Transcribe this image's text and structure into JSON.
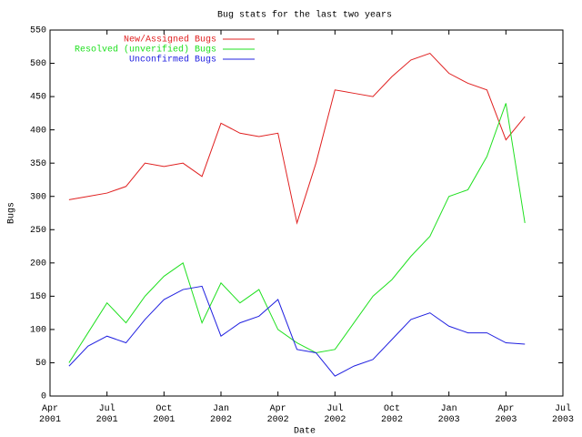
{
  "chart_data": {
    "type": "line",
    "title": "Bug stats for the last two years",
    "xlabel": "Date",
    "ylabel": "Bugs",
    "x": [
      "2001-05",
      "2001-06",
      "2001-07",
      "2001-08",
      "2001-09",
      "2001-10",
      "2001-11",
      "2001-12",
      "2002-01",
      "2002-02",
      "2002-03",
      "2002-04",
      "2002-05",
      "2002-06",
      "2002-07",
      "2002-08",
      "2002-09",
      "2002-10",
      "2002-11",
      "2002-12",
      "2003-01",
      "2003-02",
      "2003-03",
      "2003-04",
      "2003-05"
    ],
    "series": [
      {
        "name": "New/Assigned Bugs",
        "color": "#e02020",
        "values": [
          295,
          300,
          305,
          315,
          350,
          345,
          350,
          330,
          410,
          395,
          390,
          395,
          260,
          350,
          460,
          455,
          450,
          480,
          505,
          515,
          485,
          470,
          460,
          385,
          420
        ]
      },
      {
        "name": "Resolved (unverified) Bugs",
        "color": "#20e020",
        "values": [
          50,
          95,
          140,
          110,
          150,
          180,
          200,
          110,
          170,
          140,
          160,
          100,
          80,
          65,
          70,
          110,
          150,
          175,
          210,
          240,
          300,
          310,
          360,
          440,
          260
        ]
      },
      {
        "name": "Unconfirmed Bugs",
        "color": "#2020e0",
        "values": [
          45,
          75,
          90,
          80,
          115,
          145,
          160,
          165,
          90,
          110,
          120,
          145,
          70,
          65,
          30,
          45,
          55,
          85,
          115,
          125,
          105,
          95,
          95,
          80,
          78
        ]
      }
    ],
    "xlim": [
      "2001-04",
      "2003-07"
    ],
    "xticks": [
      {
        "value": "2001-04",
        "label": "Apr 2001"
      },
      {
        "value": "2001-07",
        "label": "Jul 2001"
      },
      {
        "value": "2001-10",
        "label": "Oct 2001"
      },
      {
        "value": "2002-01",
        "label": "Jan 2002"
      },
      {
        "value": "2002-04",
        "label": "Apr 2002"
      },
      {
        "value": "2002-07",
        "label": "Jul 2002"
      },
      {
        "value": "2002-10",
        "label": "Oct 2002"
      },
      {
        "value": "2003-01",
        "label": "Jan 2003"
      },
      {
        "value": "2003-04",
        "label": "Apr 2003"
      },
      {
        "value": "2003-07",
        "label": "Jul 2003"
      }
    ],
    "ylim": [
      0,
      550
    ],
    "yticks": [
      0,
      50,
      100,
      150,
      200,
      250,
      300,
      350,
      400,
      450,
      500,
      550
    ],
    "legend": "top-left",
    "grid": false
  }
}
